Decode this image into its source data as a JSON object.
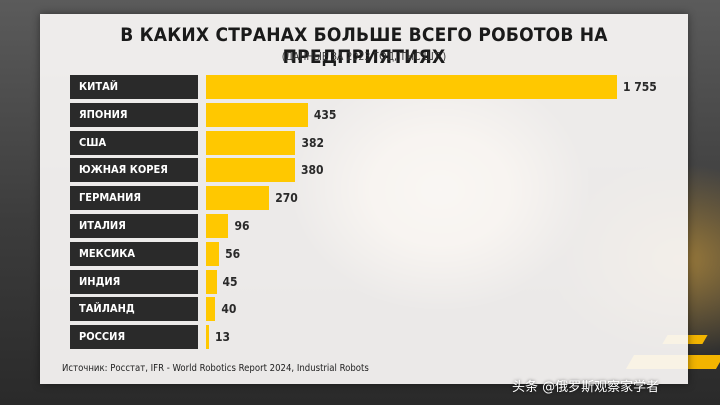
{
  "title": "В КАКИХ СТРАНАХ БОЛЬШЕ ВСЕГО РОБОТОВ НА ПРЕДПРИЯТИЯХ",
  "subtitle": "(ДАННЫЕ ЗА 2023 ГОД, ТЫС.ШТ.)",
  "source": "Источник: Росстат, IFR - World Robotics Report 2024, Industrial Robots",
  "watermark": "头条 @俄罗斯观察家学者",
  "colors": {
    "bar": "#ffc800",
    "label_bg": "#2a2a2a",
    "accent": "#f2b400"
  },
  "chart_data": {
    "type": "bar",
    "orientation": "horizontal",
    "title": "В КАКИХ СТРАНАХ БОЛЬШЕ ВСЕГО РОБОТОВ НА ПРЕДПРИЯТИЯХ",
    "subtitle": "(ДАННЫЕ ЗА 2023 ГОД, ТЫС.ШТ.)",
    "categories": [
      "КИТАЙ",
      "ЯПОНИЯ",
      "США",
      "ЮЖНАЯ КОРЕЯ",
      "ГЕРМАНИЯ",
      "ИТАЛИЯ",
      "МЕКСИКА",
      "ИНДИЯ",
      "ТАЙЛАНД",
      "РОССИЯ"
    ],
    "values": [
      1755,
      435,
      382,
      380,
      270,
      96,
      56,
      45,
      40,
      13
    ],
    "value_labels": [
      "1 755",
      "435",
      "382",
      "380",
      "270",
      "96",
      "56",
      "45",
      "40",
      "13"
    ],
    "xlim": [
      0,
      1755
    ],
    "grid": false,
    "legend": "none"
  }
}
